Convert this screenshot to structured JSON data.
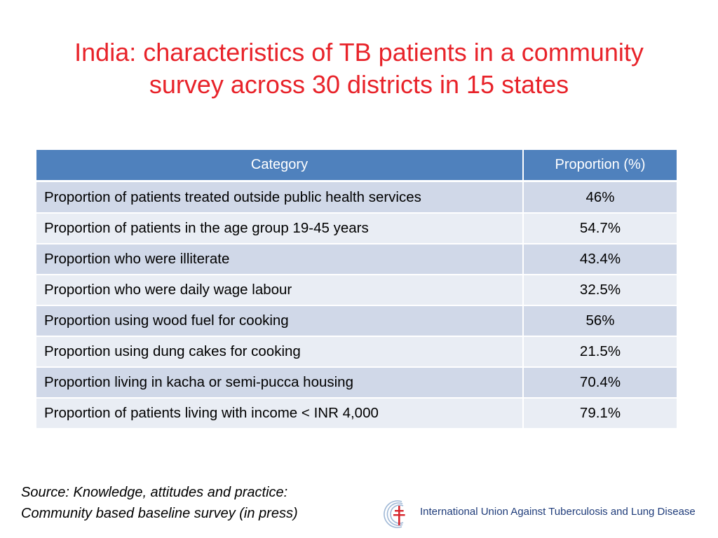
{
  "slide": {
    "title_line1": "India: characteristics of TB patients in a community",
    "title_line2": "survey across 30 districts in 15 states"
  },
  "table": {
    "headers": [
      "Category",
      "Proportion (%)"
    ],
    "rows": [
      {
        "category": "Proportion of patients treated outside public health services",
        "proportion": "46%"
      },
      {
        "category": "Proportion of patients in the age group 19-45 years",
        "proportion": "54.7%"
      },
      {
        "category": "Proportion who were illiterate",
        "proportion": "43.4%"
      },
      {
        "category": "Proportion who were daily wage labour",
        "proportion": "32.5%"
      },
      {
        "category": "Proportion using wood fuel for cooking",
        "proportion": "56%"
      },
      {
        "category": "Proportion using dung cakes for cooking",
        "proportion": "21.5%"
      },
      {
        "category": "Proportion living in kacha or semi-pucca housing",
        "proportion": "70.4%"
      },
      {
        "category": "Proportion of patients living with income < INR 4,000",
        "proportion": "79.1%"
      }
    ]
  },
  "footer": {
    "source_line1": "Source: Knowledge, attitudes and practice:",
    "source_line2": "Community based baseline survey (in press)",
    "logo_text": "International Union Against Tuberculosis and Lung Disease",
    "logo_icon": "double-barred-cross-icon"
  },
  "colors": {
    "title": "#e8232a",
    "header_bg": "#4f81bd",
    "row_odd": "#d0d8e8",
    "row_even": "#e9edf4",
    "logo_blue": "#1f3c7a",
    "logo_red": "#d7262d"
  }
}
